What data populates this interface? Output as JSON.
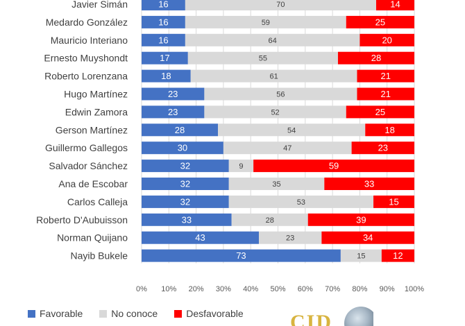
{
  "chart_data": {
    "type": "bar",
    "orientation": "horizontal",
    "stacked": "percent",
    "categories": [
      "Javier Simán",
      "Medardo González",
      "Mauricio Interiano",
      "Ernesto Muyshondt",
      "Roberto Lorenzana",
      "Hugo Martínez",
      "Edwin Zamora",
      "Gerson Martínez",
      "Guillermo Gallegos",
      "Salvador Sánchez",
      "Ana de Escobar",
      "Carlos Calleja",
      "Roberto D'Aubuisson",
      "Norman Quijano",
      "Nayib Bukele"
    ],
    "series": [
      {
        "name": "Favorable",
        "color": "#4472c4",
        "values": [
          16,
          16,
          16,
          17,
          18,
          23,
          23,
          28,
          30,
          32,
          32,
          32,
          33,
          43,
          73
        ]
      },
      {
        "name": "No conoce",
        "color": "#d9d9d9",
        "values": [
          70,
          59,
          64,
          55,
          61,
          56,
          52,
          54,
          47,
          9,
          35,
          53,
          28,
          23,
          15
        ]
      },
      {
        "name": "Desfavorable",
        "color": "#ff0000",
        "values": [
          14,
          25,
          20,
          28,
          21,
          21,
          25,
          18,
          23,
          59,
          33,
          15,
          39,
          34,
          12
        ]
      }
    ],
    "x_ticks": [
      "0%",
      "10%",
      "20%",
      "30%",
      "40%",
      "50%",
      "60%",
      "70%",
      "80%",
      "90%",
      "100%"
    ],
    "xlim": [
      0,
      100
    ],
    "legend_position": "bottom-left",
    "grid": true
  },
  "legend": {
    "items": [
      {
        "label": "Favorable",
        "color": "#4472c4"
      },
      {
        "label": "No conoce",
        "color": "#d9d9d9"
      },
      {
        "label": "Desfavorable",
        "color": "#ff0000"
      }
    ]
  },
  "logo": {
    "text": "CID"
  }
}
